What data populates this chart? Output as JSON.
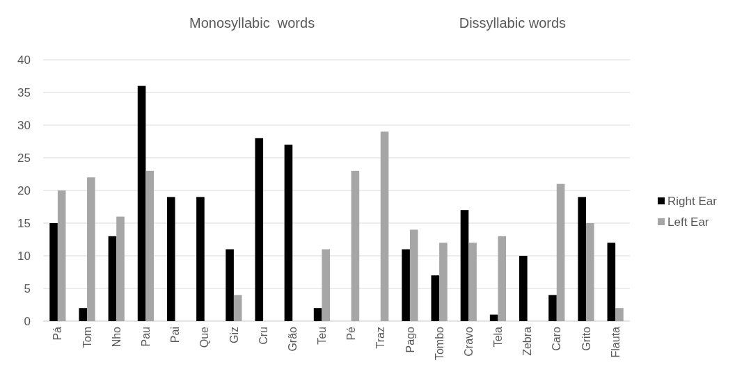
{
  "chart_data": {
    "type": "bar",
    "categories": [
      "Pá",
      "Tom",
      "Nho",
      "Pau",
      "Pai",
      "Que",
      "Giz",
      "Cru",
      "Grão",
      "Teu",
      "Pé",
      "Traz",
      "Pago",
      "Tombo",
      "Cravo",
      "Tela",
      "Zebra",
      "Caro",
      "Grito",
      "Flauta"
    ],
    "series": [
      {
        "name": "Right Ear",
        "color": "#000000",
        "values": [
          15,
          2,
          13,
          36,
          19,
          19,
          11,
          28,
          27,
          2,
          0,
          0,
          11,
          7,
          17,
          1,
          10,
          4,
          19,
          12
        ]
      },
      {
        "name": "Left Ear",
        "color": "#a6a6a6",
        "values": [
          20,
          22,
          16,
          23,
          0,
          0,
          4,
          0,
          0,
          11,
          23,
          29,
          14,
          12,
          12,
          13,
          0,
          21,
          15,
          2
        ]
      }
    ],
    "annotations": [
      "Monosyllabic  words",
      "Dissyllabic words"
    ],
    "ylim": [
      0,
      40
    ],
    "yticks": [
      0,
      5,
      10,
      15,
      20,
      25,
      30,
      35,
      40
    ],
    "grid": "y",
    "legend": "right"
  }
}
